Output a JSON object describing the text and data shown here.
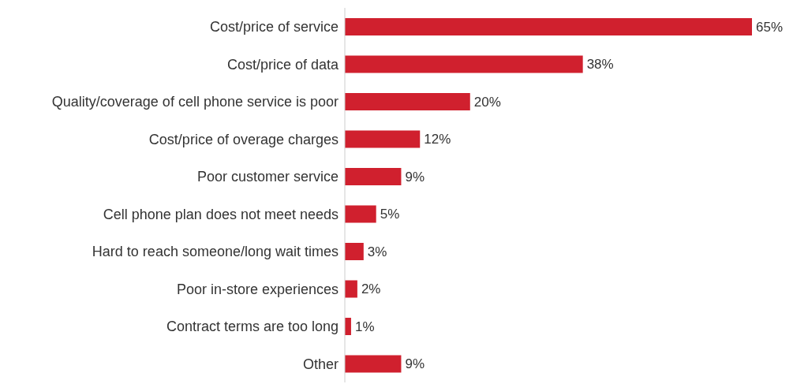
{
  "chart_data": {
    "type": "bar",
    "orientation": "horizontal",
    "categories": [
      "Cost/price of service",
      "Cost/price of data",
      "Quality/coverage of cell phone service is poor",
      "Cost/price of overage charges",
      "Poor customer service",
      "Cell phone plan does not meet needs",
      "Hard to reach someone/long wait times",
      "Poor in-store experiences",
      "Contract terms are too long",
      "Other"
    ],
    "values": [
      65,
      38,
      20,
      12,
      9,
      5,
      3,
      2,
      1,
      9
    ],
    "value_labels": [
      "65%",
      "38%",
      "20%",
      "12%",
      "9%",
      "5%",
      "3%",
      "2%",
      "1%",
      "9%"
    ],
    "color": "#d0202e",
    "grid": false
  }
}
